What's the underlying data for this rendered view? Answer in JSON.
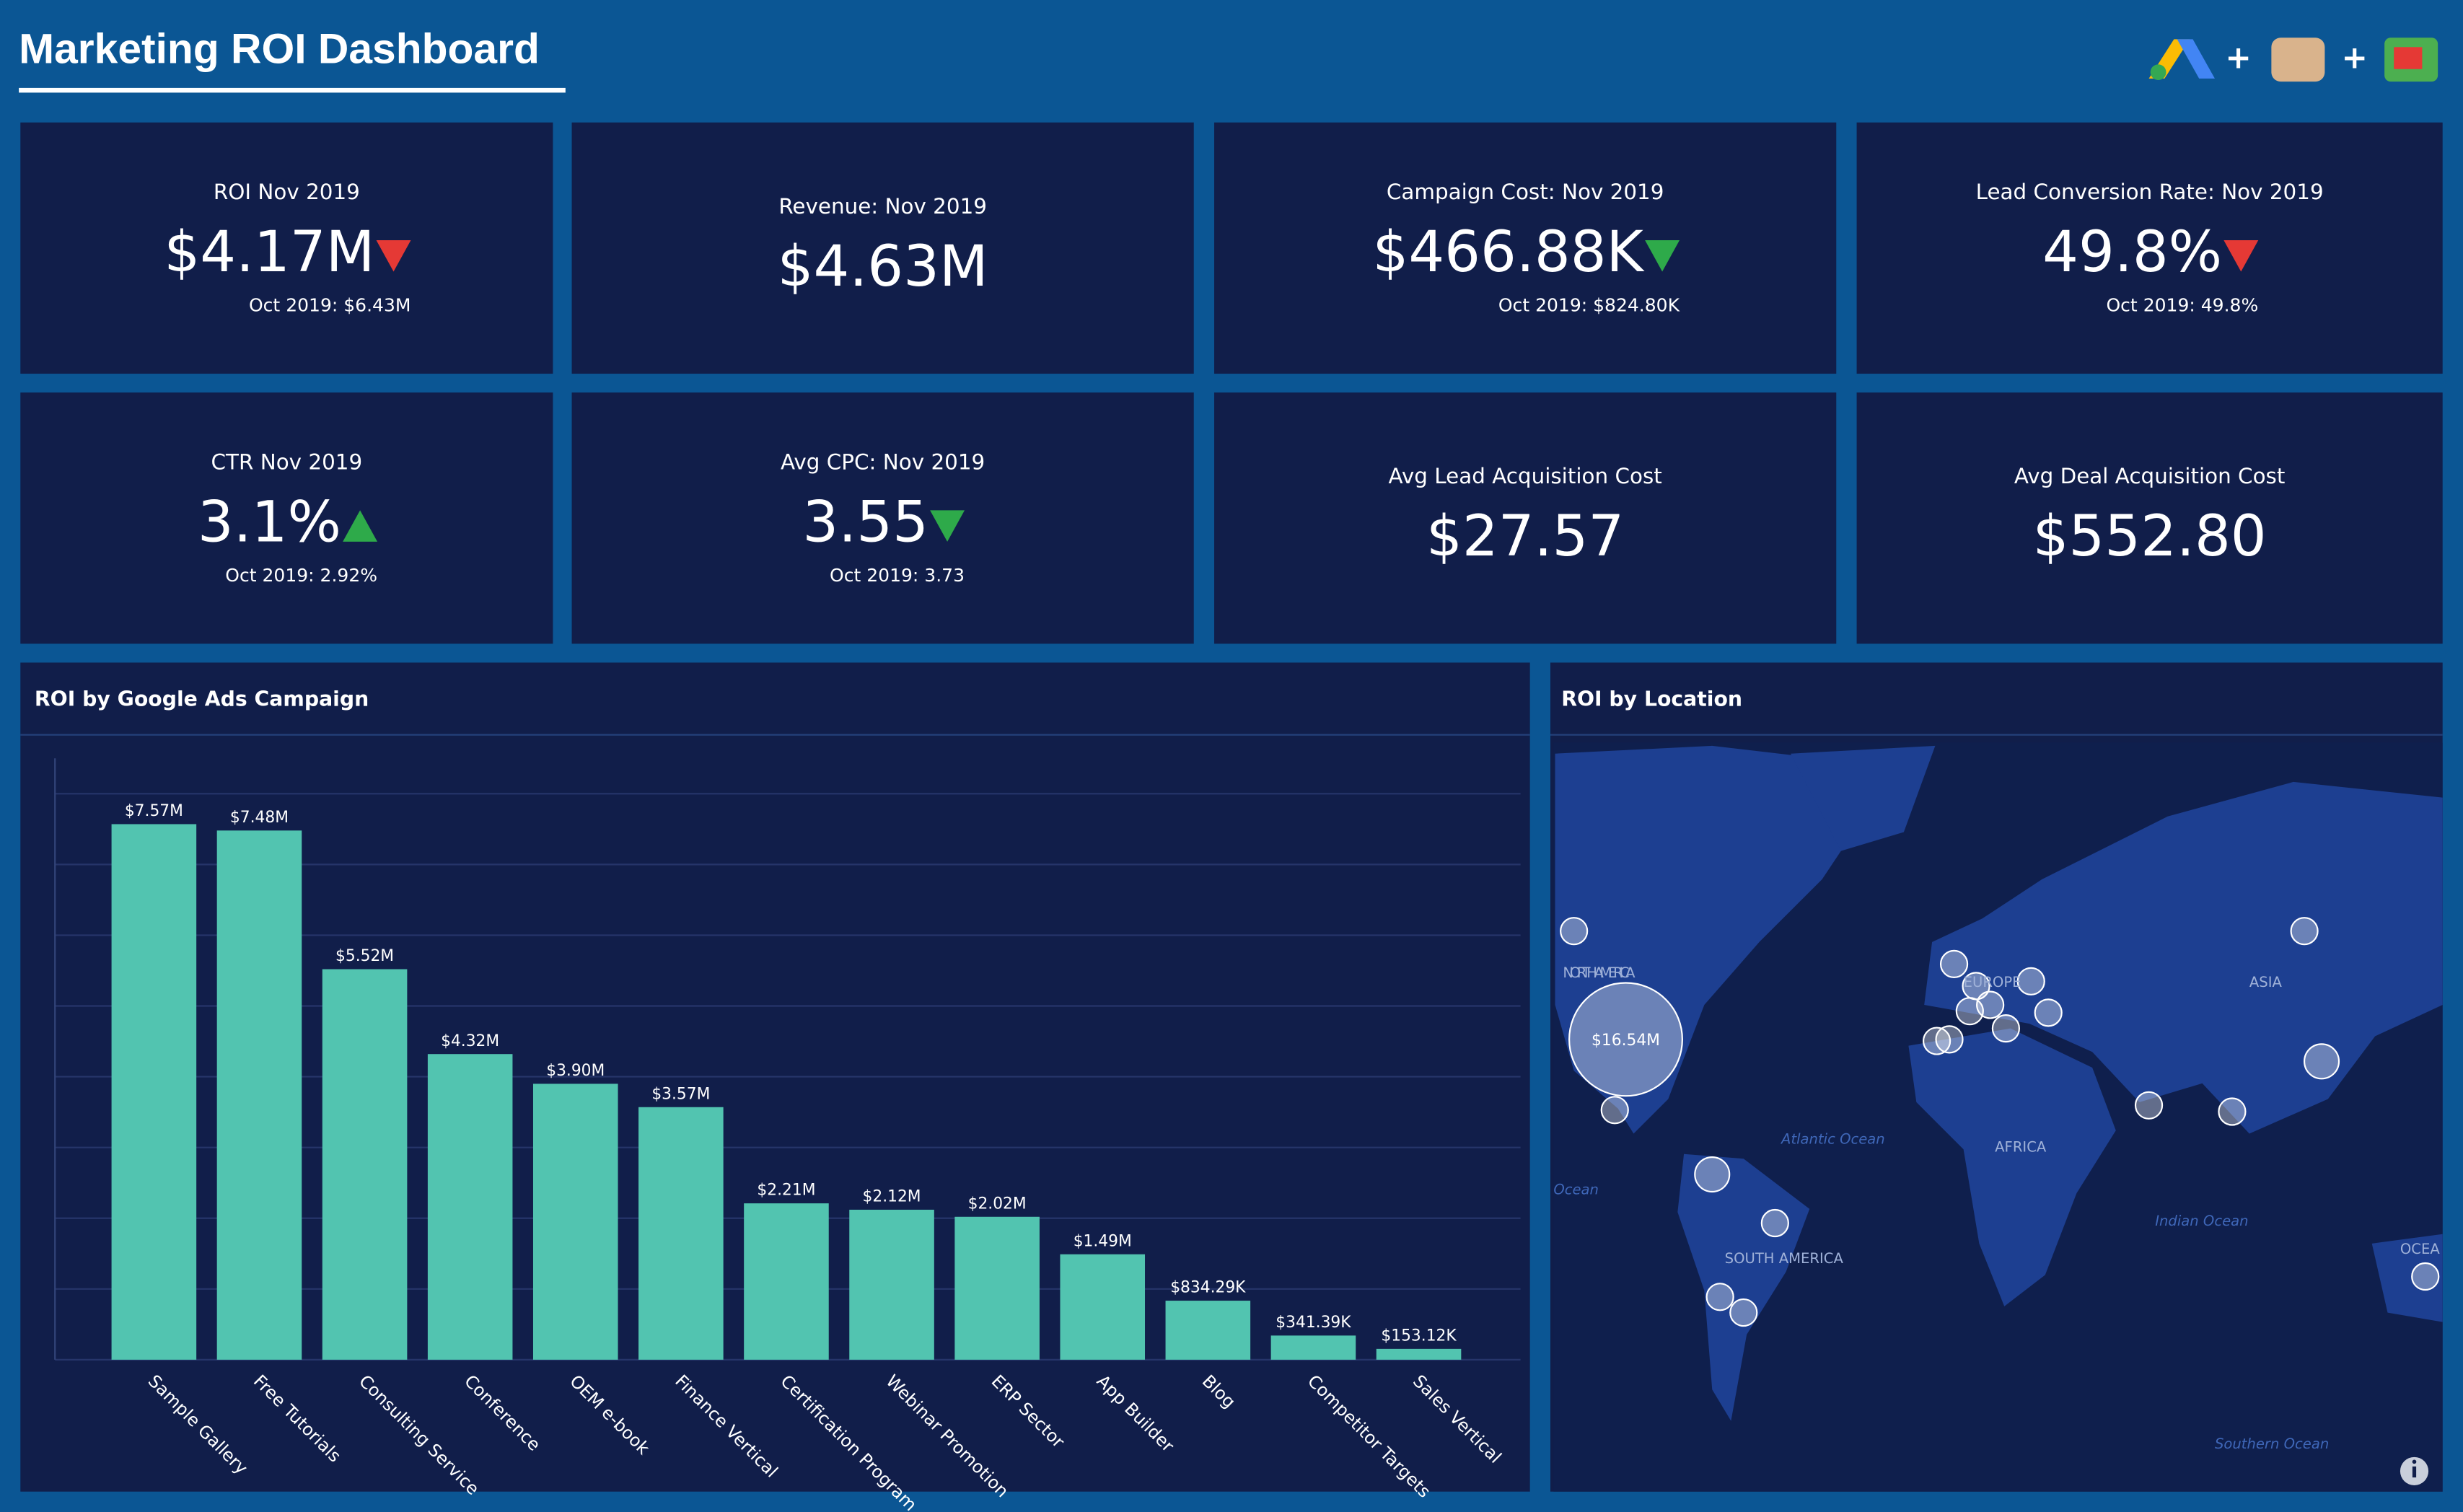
{
  "header": {
    "title": "Marketing ROI Dashboard",
    "separators": [
      "+",
      "+"
    ]
  },
  "kpis": [
    {
      "label": "ROI Nov 2019",
      "value": "$4.17M",
      "trend": "down",
      "trend_color": "#e53935",
      "comparison": "Oct 2019: $6.43M"
    },
    {
      "label": "Revenue: Nov 2019",
      "value": "$4.63M"
    },
    {
      "label": "Campaign Cost: Nov 2019",
      "value": "$466.88K",
      "trend": "down",
      "trend_color": "#2eaa4a",
      "comparison": "Oct 2019: $824.80K"
    },
    {
      "label": "Lead Conversion Rate: Nov 2019",
      "value": "49.8%",
      "trend": "down",
      "trend_color": "#e53935",
      "comparison": "Oct 2019: 49.8%"
    },
    {
      "label": "CTR Nov 2019",
      "value": "3.1%",
      "trend": "up",
      "trend_color": "#2eaa4a",
      "comparison": "Oct 2019: 2.92%"
    },
    {
      "label": "Avg CPC: Nov 2019",
      "value": "3.55",
      "trend": "down",
      "trend_color": "#2eaa4a",
      "comparison": "Oct 2019: 3.73"
    },
    {
      "label": "Avg Lead Acquisition Cost",
      "value": "$27.57"
    },
    {
      "label": "Avg Deal Acquisition Cost",
      "value": "$552.80"
    }
  ],
  "campaign_chart": {
    "type": "bar",
    "title": "ROI by Google Ads Campaign",
    "categories": [
      "Sample Gallery",
      "Free Tutorials",
      "Consulting Service",
      "Conference",
      "OEM e-book",
      "Finance Vertical",
      "Certification Program",
      "Webinar Promotion",
      "ERP Sector",
      "App Builder",
      "Blog",
      "Competitor Targets",
      "Sales Vertical"
    ],
    "values": [
      7570000,
      7480000,
      5520000,
      4320000,
      3900000,
      3570000,
      2210000,
      2120000,
      2020000,
      1490000,
      834290,
      341390,
      153120
    ],
    "value_labels": [
      "$7.57M",
      "$7.48M",
      "$5.52M",
      "$4.32M",
      "$3.90M",
      "$3.57M",
      "$2.21M",
      "$2.12M",
      "$2.02M",
      "$1.49M",
      "$834.29K",
      "$341.39K",
      "$153.12K"
    ],
    "color": "#52c4b0",
    "ylim": [
      0,
      8500000
    ],
    "grid_lines": [
      0,
      1000000,
      2000000,
      3000000,
      4000000,
      5000000,
      6000000,
      7000000,
      8000000
    ]
  },
  "location_map": {
    "title": "ROI by Location",
    "region_labels": [
      "NORTH AMERICA",
      "EUROPE",
      "ASIA",
      "AFRICA",
      "SOUTH AMERICA",
      "OCEA"
    ],
    "ocean_labels": [
      "Atlantic Ocean",
      "Indian Ocean",
      "Southern Ocean",
      "Ocean"
    ],
    "bubble": {
      "value": 16540000,
      "label": "$16.54M"
    }
  }
}
